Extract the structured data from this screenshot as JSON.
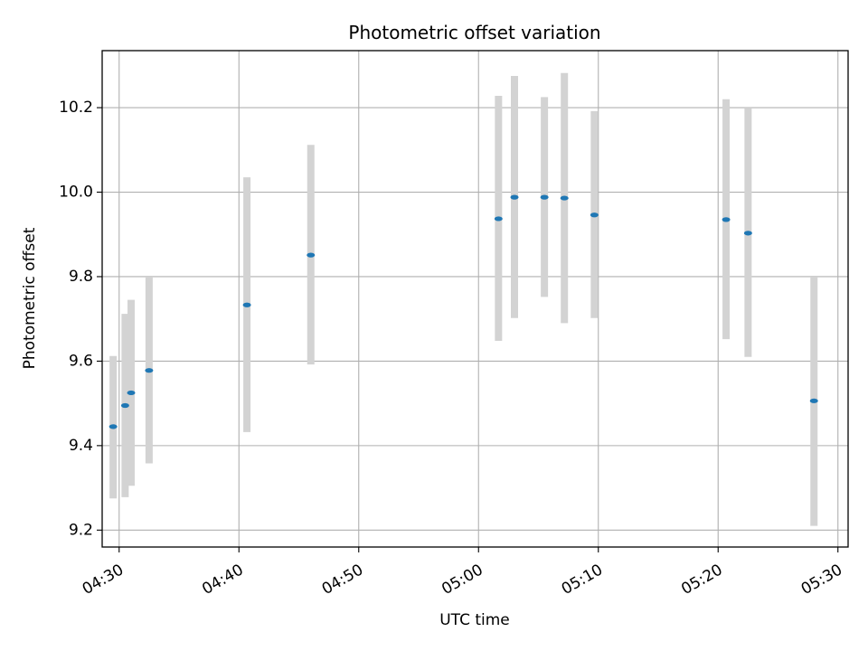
{
  "chart_data": {
    "type": "scatter",
    "title": "Photometric offset variation",
    "xlabel": "UTC time",
    "ylabel": "Photometric offset",
    "x_is_time": true,
    "xlim": [
      "04:28:35",
      "05:30:51"
    ],
    "ylim": [
      9.16,
      10.335
    ],
    "grid": true,
    "x_ticks": [
      "04:30",
      "04:40",
      "04:50",
      "05:00",
      "05:10",
      "05:20",
      "05:30"
    ],
    "y_ticks": [
      "9.2",
      "9.4",
      "9.6",
      "9.8",
      "10.0",
      "10.2"
    ],
    "series": [
      {
        "marker_color": "#1f77b4",
        "errorbar_color": "#d3d3d3",
        "points": [
          {
            "x": "04:29:30",
            "y": 9.445,
            "ylow": 9.275,
            "yhigh": 9.612
          },
          {
            "x": "04:30:30",
            "y": 9.495,
            "ylow": 9.278,
            "yhigh": 9.712
          },
          {
            "x": "04:31:00",
            "y": 9.525,
            "ylow": 9.305,
            "yhigh": 9.745
          },
          {
            "x": "04:32:30",
            "y": 9.578,
            "ylow": 9.358,
            "yhigh": 9.798
          },
          {
            "x": "04:40:40",
            "y": 9.733,
            "ylow": 9.432,
            "yhigh": 10.035
          },
          {
            "x": "04:46:00",
            "y": 9.851,
            "ylow": 9.592,
            "yhigh": 10.112
          },
          {
            "x": "05:01:40",
            "y": 9.937,
            "ylow": 9.648,
            "yhigh": 10.228
          },
          {
            "x": "05:03:00",
            "y": 9.988,
            "ylow": 9.702,
            "yhigh": 10.275
          },
          {
            "x": "05:05:30",
            "y": 9.988,
            "ylow": 9.752,
            "yhigh": 10.225
          },
          {
            "x": "05:07:10",
            "y": 9.986,
            "ylow": 9.69,
            "yhigh": 10.282
          },
          {
            "x": "05:09:40",
            "y": 9.946,
            "ylow": 9.702,
            "yhigh": 10.192
          },
          {
            "x": "05:20:40",
            "y": 9.935,
            "ylow": 9.652,
            "yhigh": 10.22
          },
          {
            "x": "05:22:30",
            "y": 9.903,
            "ylow": 9.61,
            "yhigh": 10.198
          },
          {
            "x": "05:28:00",
            "y": 9.506,
            "ylow": 9.21,
            "yhigh": 9.798
          }
        ]
      }
    ]
  }
}
